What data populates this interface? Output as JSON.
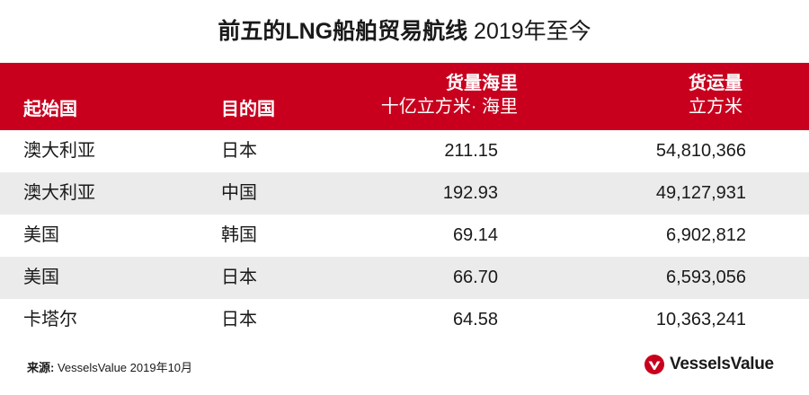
{
  "title": {
    "bold": "前五的LNG船舶贸易航线",
    "light": " 2019年至今"
  },
  "header": {
    "origin": "起始国",
    "destination": "目的国",
    "nm_title": "货量海里",
    "nm_unit": "十亿立方米· 海里",
    "vol_title": "货运量",
    "vol_unit": "立方米"
  },
  "rows": [
    {
      "origin": "澳大利亚",
      "destination": "日本",
      "nm": "211.15",
      "volume": "54,810,366"
    },
    {
      "origin": "澳大利亚",
      "destination": "中国",
      "nm": "192.93",
      "volume": "49,127,931"
    },
    {
      "origin": "美国",
      "destination": "韩国",
      "nm": "69.14",
      "volume": "6,902,812"
    },
    {
      "origin": "美国",
      "destination": "日本",
      "nm": "66.70",
      "volume": "6,593,056"
    },
    {
      "origin": "卡塔尔",
      "destination": "日本",
      "nm": "64.58",
      "volume": "10,363,241"
    }
  ],
  "source": {
    "label": "来源:",
    "text": " VesselsValue 2019年10月"
  },
  "logo": {
    "text": "VesselsValue",
    "icon": "vesselsvalue-logo-icon"
  },
  "colors": {
    "header_bg": "#c8001e",
    "row_alt_bg": "#ebebeb",
    "brand_red": "#c8001e"
  }
}
